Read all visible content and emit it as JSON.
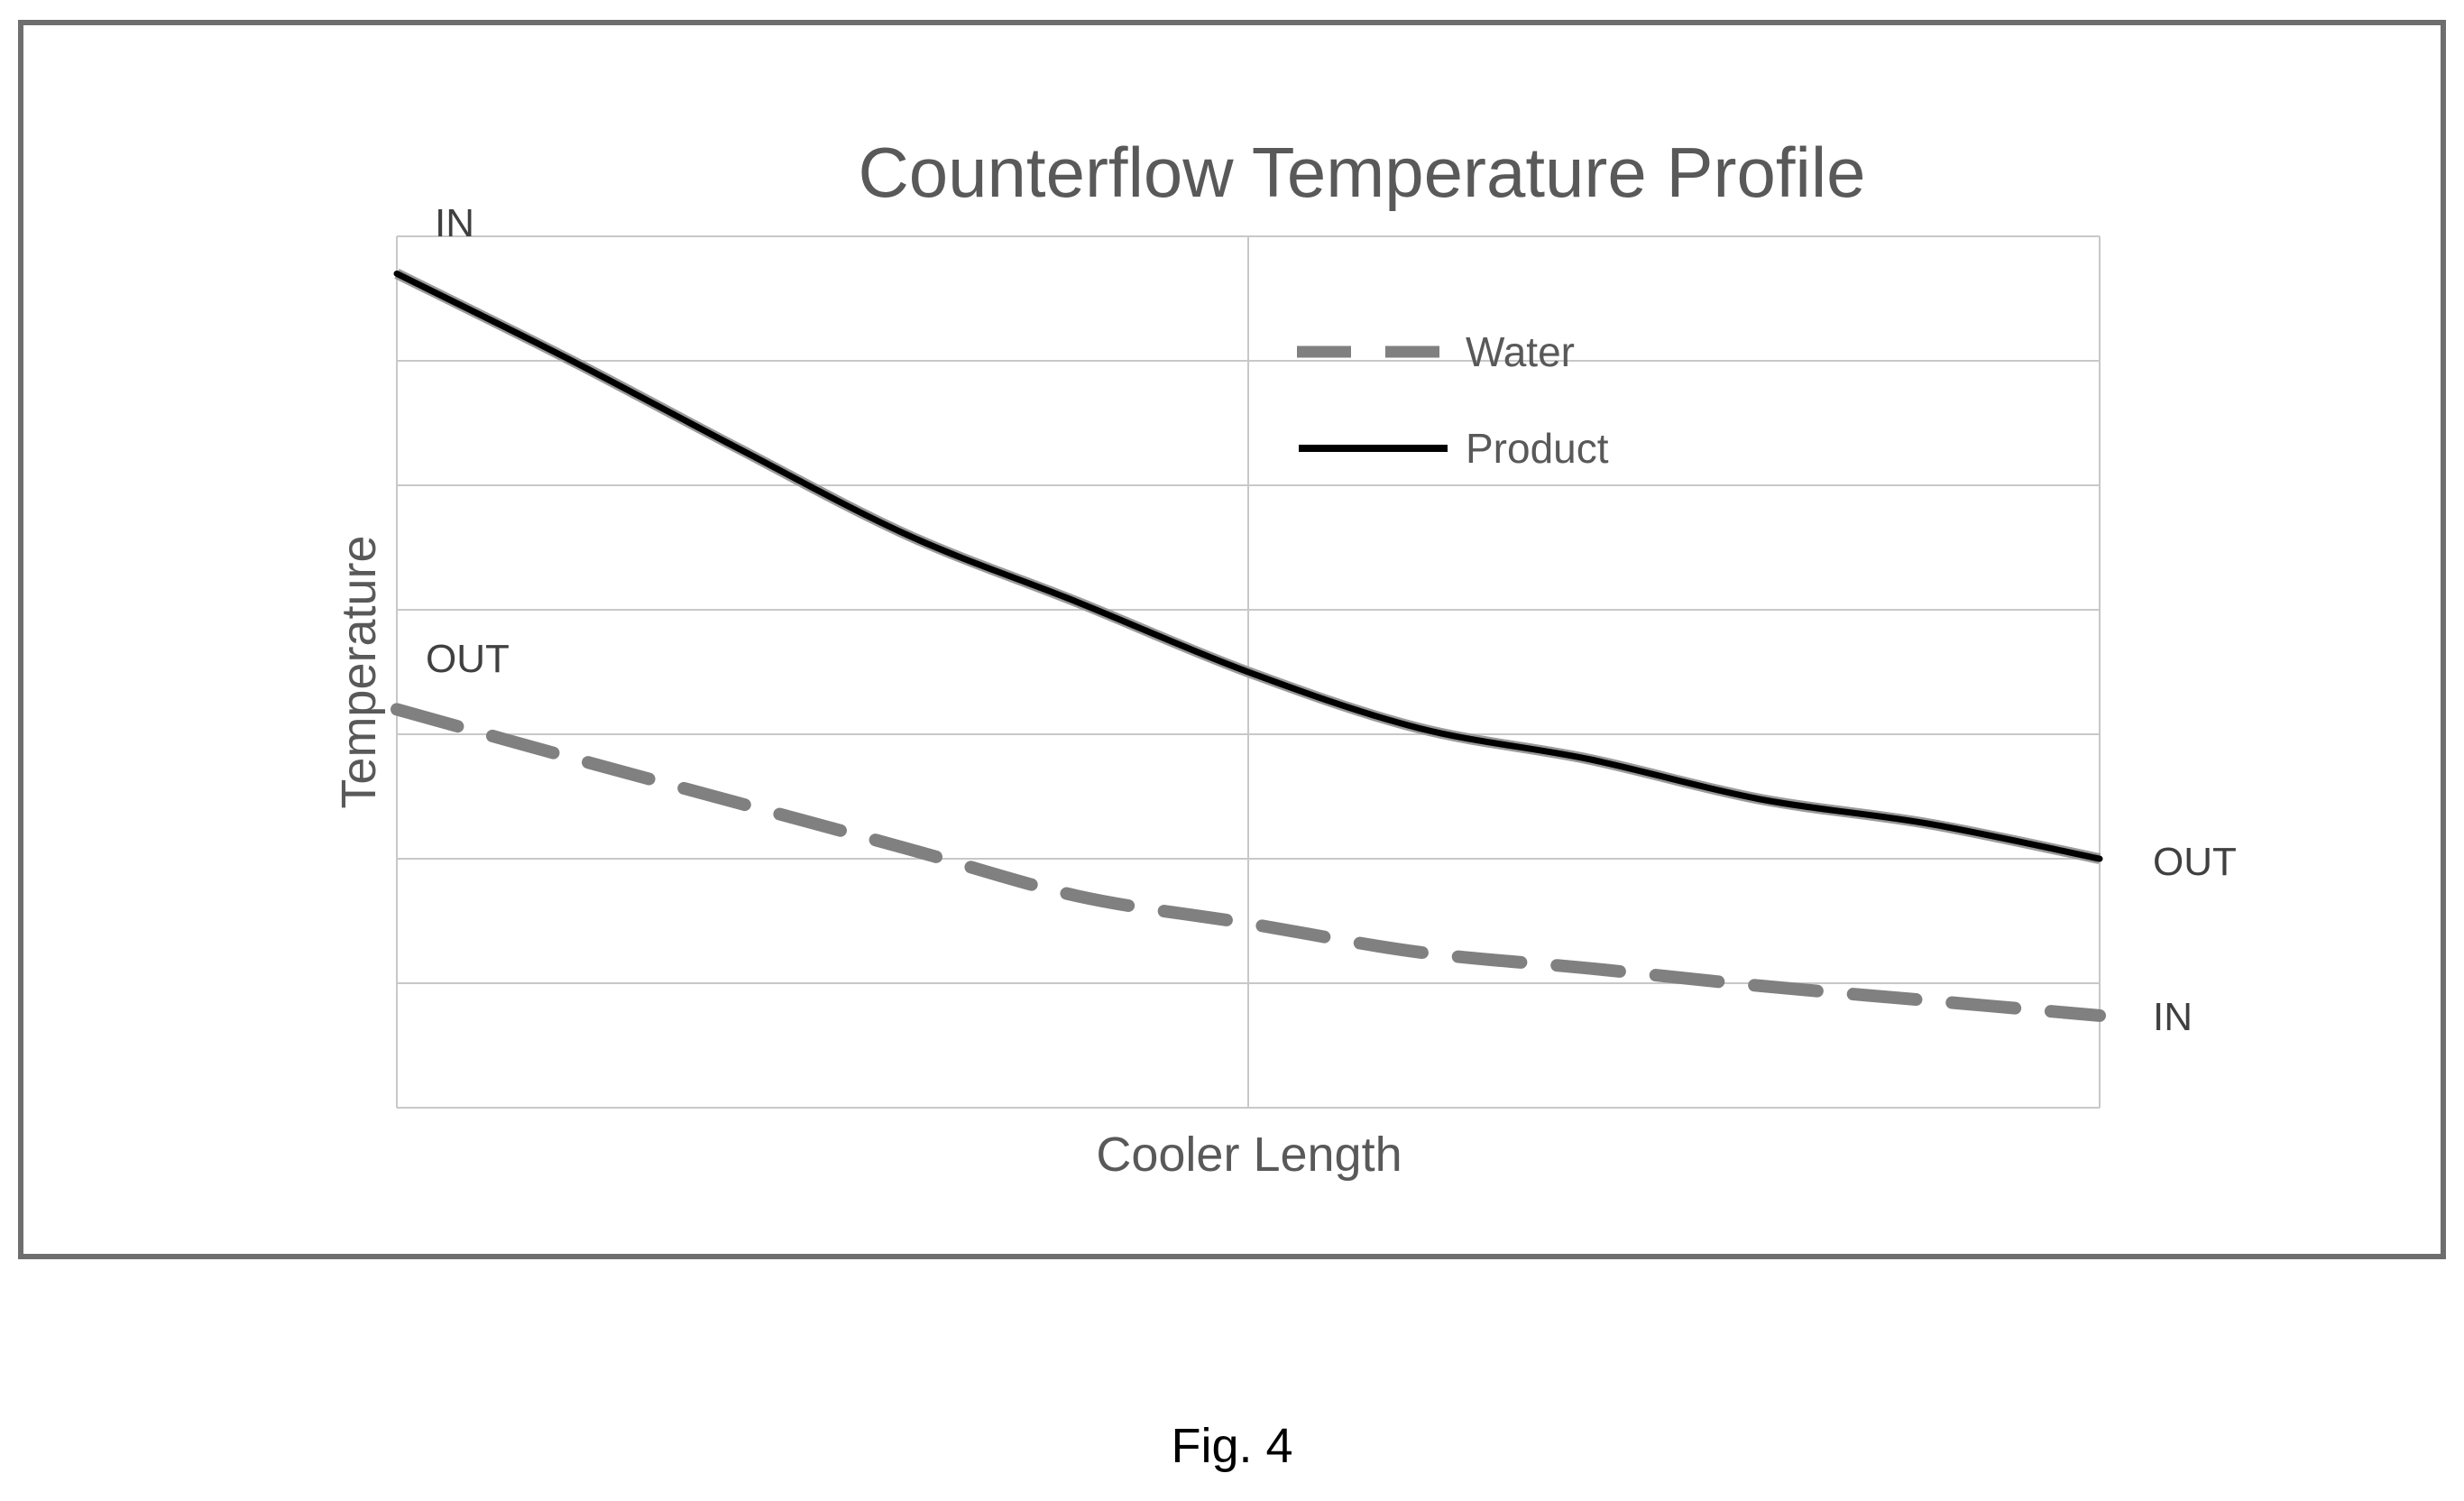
{
  "figure": {
    "caption": "Fig. 4"
  },
  "chart_data": {
    "type": "line",
    "title": "Counterflow Temperature Profile",
    "xlabel": "Cooler Length",
    "ylabel": "Temperature",
    "xlim": [
      0,
      1
    ],
    "ylim": [
      0,
      7
    ],
    "x_gridlines": [
      0,
      0.5,
      1
    ],
    "y_gridlines": [
      0,
      1,
      2,
      3,
      4,
      5,
      6,
      7
    ],
    "grid": true,
    "tick_labels": false,
    "legend": {
      "placement": "top-center",
      "entries": [
        "Water",
        "Product"
      ]
    },
    "series": [
      {
        "name": "Water",
        "style": "dashed",
        "color": "#808080",
        "x": [
          0,
          0.1,
          0.2,
          0.3,
          0.4,
          0.5,
          0.6,
          0.7,
          0.8,
          0.9,
          1.0
        ],
        "values": [
          3.2,
          2.82,
          2.45,
          2.08,
          1.7,
          1.48,
          1.25,
          1.12,
          0.98,
          0.86,
          0.74
        ]
      },
      {
        "name": "Product",
        "style": "solid",
        "color": "#000000",
        "x": [
          0,
          0.1,
          0.2,
          0.3,
          0.4,
          0.5,
          0.6,
          0.7,
          0.8,
          0.9,
          1.0
        ],
        "values": [
          6.7,
          6.02,
          5.3,
          4.6,
          4.06,
          3.5,
          3.05,
          2.8,
          2.48,
          2.28,
          2.0
        ]
      }
    ],
    "annotations": [
      {
        "text": "IN",
        "series": "Product",
        "end": "start"
      },
      {
        "text": "OUT",
        "series": "Product",
        "end": "end"
      },
      {
        "text": "OUT",
        "series": "Water",
        "end": "start"
      },
      {
        "text": "IN",
        "series": "Water",
        "end": "end"
      }
    ]
  }
}
